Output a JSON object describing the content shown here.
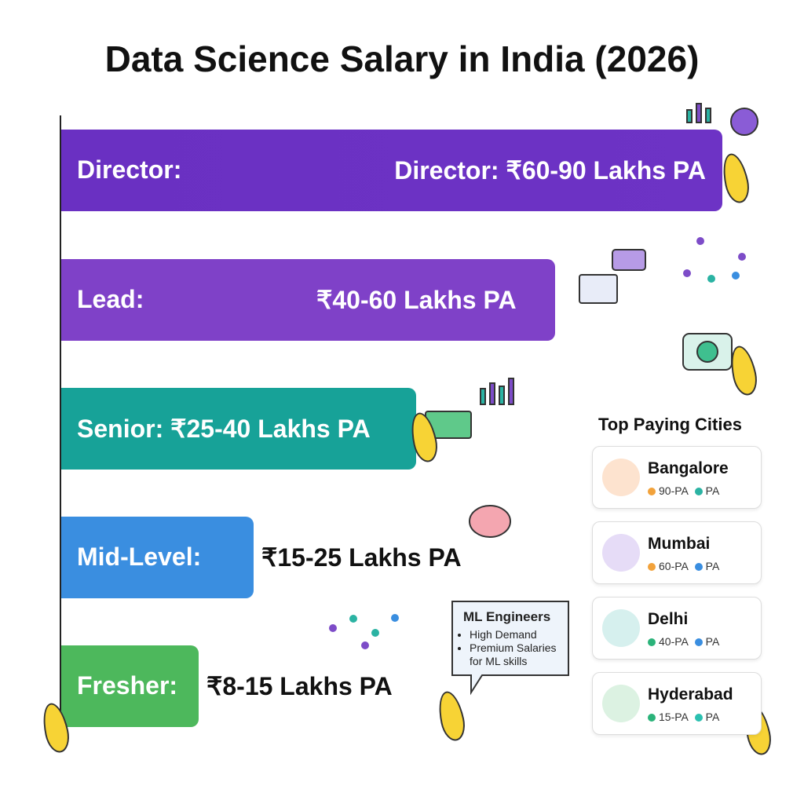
{
  "title": "Data Science Salary in India (2026)",
  "levels": [
    {
      "label": "Director:",
      "salary": "Director: ₹60-90 Lakhs PA"
    },
    {
      "label": "Lead:",
      "salary": "₹40-60 Lakhs PA"
    },
    {
      "label": "Senior: ₹25-40 Lakhs PA"
    },
    {
      "label": "Mid-Level:",
      "salary": "₹15-25 Lakhs PA"
    },
    {
      "label": "Fresher:",
      "salary": "₹8-15 Lakhs PA"
    }
  ],
  "callout": {
    "title": "ML Engineers",
    "items": [
      "High Demand",
      "Premium Salaries for ML skills"
    ]
  },
  "cities": {
    "heading": "Top Paying Cities",
    "items": [
      {
        "name": "Bangalore",
        "tags": [
          "90-PA",
          "PA"
        ]
      },
      {
        "name": "Mumbai",
        "tags": [
          "60-PA",
          "PA"
        ]
      },
      {
        "name": "Delhi",
        "tags": [
          "40-PA",
          "PA"
        ]
      },
      {
        "name": "Hyderabad",
        "tags": [
          "15-PA",
          "PA"
        ]
      }
    ]
  }
}
